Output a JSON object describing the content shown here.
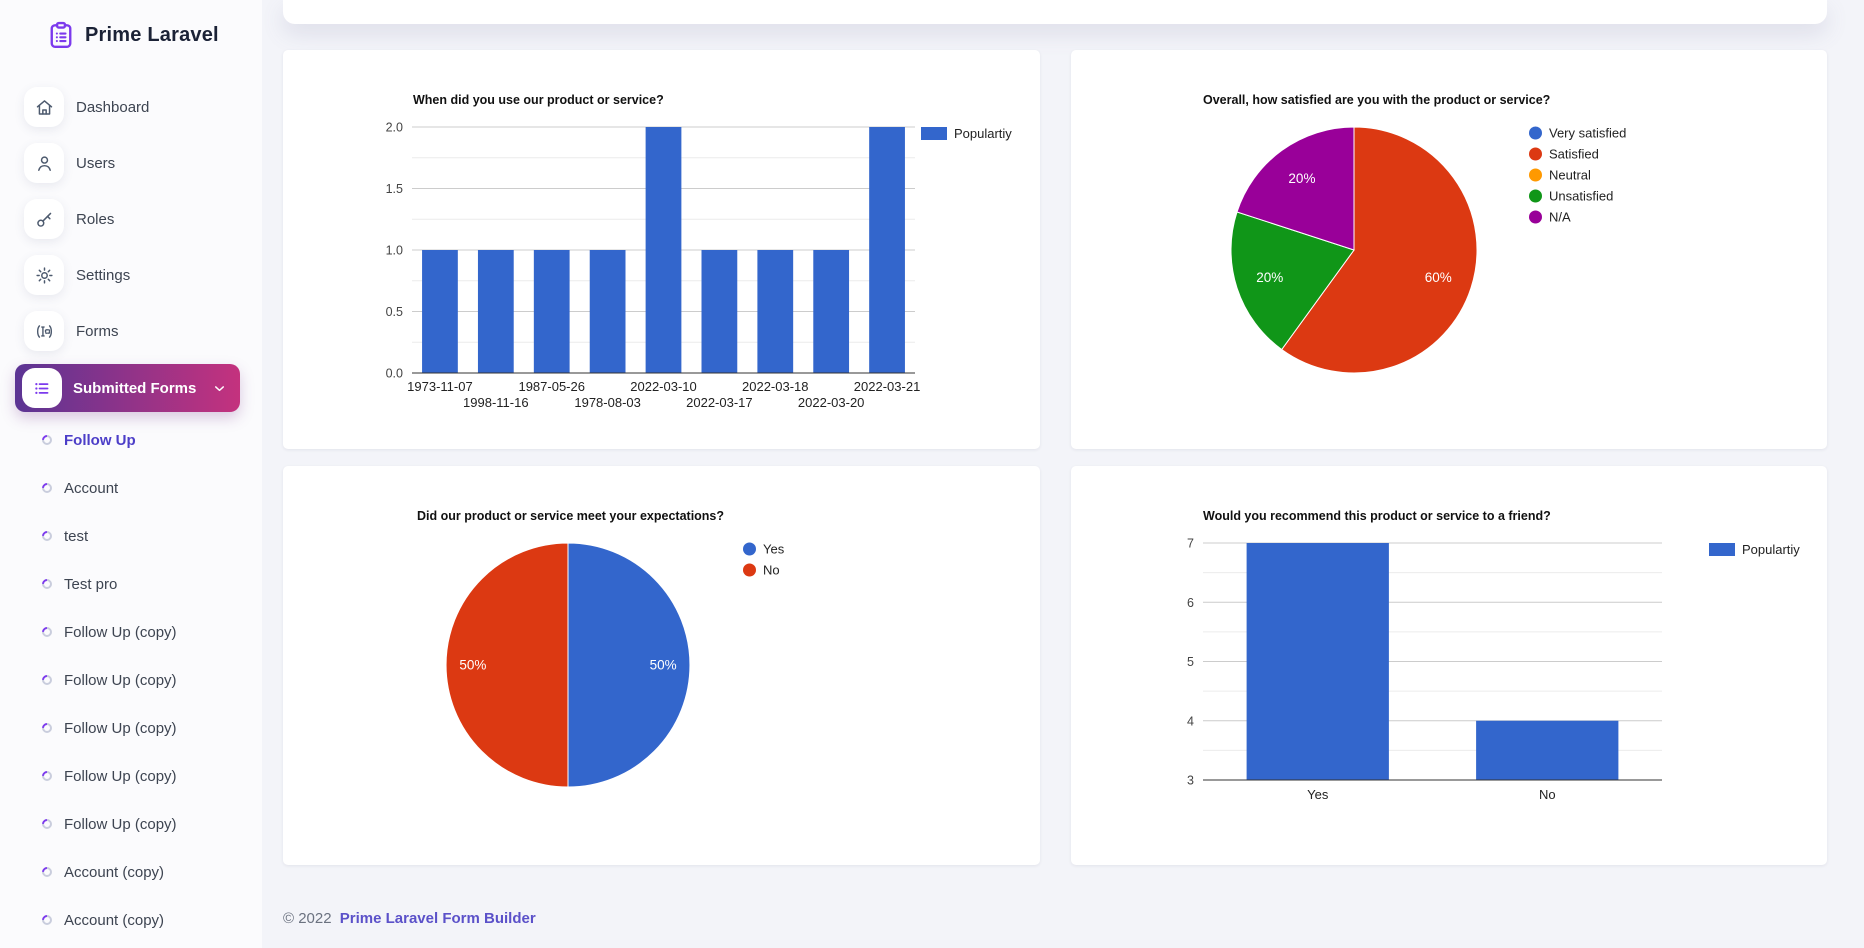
{
  "app": {
    "logo_text": "Prime Laravel"
  },
  "theme": {
    "accent_purple": "#7c3aed",
    "sidebar_gradient_start": "#5b3494",
    "sidebar_gradient_end": "#c4327e",
    "active_link_purple": "#4c3ec8",
    "footer_link_purple": "#5b51c9",
    "chart_palette": [
      "#3366cc",
      "#dc3912",
      "#ff9900",
      "#109618",
      "#990099"
    ]
  },
  "sidebar": {
    "nav": [
      {
        "label": "Dashboard",
        "icon": "home-icon"
      },
      {
        "label": "Users",
        "icon": "user-icon"
      },
      {
        "label": "Roles",
        "icon": "key-icon"
      },
      {
        "label": "Settings",
        "icon": "gear-icon"
      },
      {
        "label": "Forms",
        "icon": "forms-icon"
      }
    ],
    "submitted": {
      "label": "Submitted Forms",
      "icon": "list-icon"
    },
    "forms": [
      {
        "label": "Follow Up",
        "active": true
      },
      {
        "label": "Account"
      },
      {
        "label": "test"
      },
      {
        "label": "Test pro"
      },
      {
        "label": "Follow Up (copy)"
      },
      {
        "label": "Follow Up (copy)"
      },
      {
        "label": "Follow Up (copy)"
      },
      {
        "label": "Follow Up (copy)"
      },
      {
        "label": "Follow Up (copy)"
      },
      {
        "label": "Account (copy)"
      },
      {
        "label": "Account (copy)"
      }
    ]
  },
  "footer": {
    "copyright": "© 2022",
    "link": "Prime Laravel Form Builder"
  },
  "chart_data": [
    {
      "type": "bar",
      "title": "When did you use our product or service?",
      "categories": [
        "1973-11-07",
        "1998-11-16",
        "1987-05-26",
        "1978-08-03",
        "2022-03-10",
        "2022-03-17",
        "2022-03-18",
        "2022-03-20",
        "2022-03-21"
      ],
      "series": [
        {
          "name": "Populartiy",
          "values": [
            1,
            1,
            1,
            1,
            2,
            1,
            1,
            1,
            2
          ]
        }
      ],
      "ylim": [
        0,
        2
      ],
      "yticks": [
        0,
        0.5,
        1,
        1.5,
        2
      ],
      "ytick_labels": [
        "0.0",
        "0.5",
        "1.0",
        "1.5",
        "2.0"
      ],
      "minor_step": 0.25,
      "bar_color": "#3366cc",
      "legend_position": "right",
      "stagger_x_labels": true,
      "grid": true
    },
    {
      "type": "pie",
      "title": "Overall, how satisfied are you with the product or service?",
      "slices": [
        {
          "label": "Very satisfied",
          "value": 0,
          "color": "#3366cc"
        },
        {
          "label": "Satisfied",
          "value": 60,
          "color": "#dc3912"
        },
        {
          "label": "Neutral",
          "value": 0,
          "color": "#ff9900"
        },
        {
          "label": "Unsatisfied",
          "value": 20,
          "color": "#109618"
        },
        {
          "label": "N/A",
          "value": 20,
          "color": "#990099"
        }
      ],
      "value_format": "percent",
      "legend_position": "right"
    },
    {
      "type": "pie",
      "title": "Did our product or service meet your expectations?",
      "slices": [
        {
          "label": "Yes",
          "value": 50,
          "color": "#3366cc"
        },
        {
          "label": "No",
          "value": 50,
          "color": "#dc3912"
        }
      ],
      "value_format": "percent",
      "legend_position": "right"
    },
    {
      "type": "bar",
      "title": "Would you recommend this product or service to a friend?",
      "categories": [
        "Yes",
        "No"
      ],
      "series": [
        {
          "name": "Populartiy",
          "values": [
            7,
            4
          ]
        }
      ],
      "ylim": [
        3,
        7
      ],
      "yticks": [
        3,
        4,
        5,
        6,
        7
      ],
      "ytick_labels": [
        "3",
        "4",
        "5",
        "6",
        "7"
      ],
      "minor_step": 0.5,
      "bar_color": "#3366cc",
      "legend_position": "right",
      "stagger_x_labels": false,
      "grid": true
    }
  ]
}
